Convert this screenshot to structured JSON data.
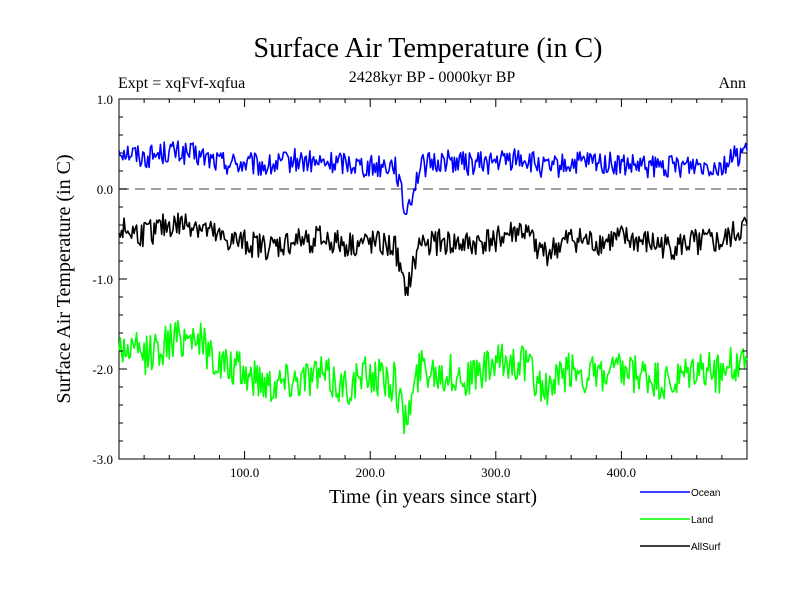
{
  "chart_data": {
    "type": "line",
    "title": "Surface Air Temperature (in C)",
    "subtitle": "2428kyr BP - 0000kyr BP",
    "experiment": "Expt = xqFvf-xqfua",
    "season": "Ann",
    "xlabel": "Time (in years since start)",
    "ylabel": "Surface Air Temperature (in C)",
    "xlim": [
      0,
      500
    ],
    "ylim": [
      -3.0,
      1.0
    ],
    "x_ticks": [
      {
        "value": 100,
        "label": "100.0"
      },
      {
        "value": 200,
        "label": "200.0"
      },
      {
        "value": 300,
        "label": "300.0"
      },
      {
        "value": 400,
        "label": "400.0"
      }
    ],
    "y_ticks": [
      {
        "value": 1.0,
        "label": "1.0"
      },
      {
        "value": 0.0,
        "label": "0.0"
      },
      {
        "value": -1.0,
        "label": "-1.0"
      },
      {
        "value": -2.0,
        "label": "-2.0"
      },
      {
        "value": -3.0,
        "label": "-3.0"
      }
    ],
    "reference_line": {
      "y": 0.0,
      "style": "dashed",
      "color": "#808080"
    },
    "series": [
      {
        "name": "Ocean",
        "color": "#0000ff",
        "x": [
          0,
          20,
          40,
          60,
          80,
          100,
          120,
          140,
          160,
          180,
          200,
          220,
          228,
          240,
          260,
          280,
          300,
          320,
          340,
          360,
          380,
          400,
          420,
          440,
          460,
          480,
          500
        ],
        "values": [
          0.45,
          0.35,
          0.42,
          0.38,
          0.3,
          0.28,
          0.25,
          0.32,
          0.28,
          0.3,
          0.25,
          0.28,
          -0.28,
          0.25,
          0.32,
          0.28,
          0.3,
          0.35,
          0.22,
          0.28,
          0.3,
          0.26,
          0.24,
          0.25,
          0.28,
          0.26,
          0.45
        ],
        "extremes": {
          "max": 0.65,
          "min": -0.28
        }
      },
      {
        "name": "Land",
        "color": "#00ff00",
        "x": [
          0,
          20,
          40,
          60,
          80,
          100,
          120,
          140,
          160,
          180,
          200,
          220,
          228,
          240,
          260,
          280,
          300,
          320,
          340,
          360,
          380,
          400,
          420,
          440,
          460,
          480,
          500
        ],
        "values": [
          -1.75,
          -1.85,
          -1.7,
          -1.6,
          -1.95,
          -2.05,
          -2.15,
          -2.1,
          -2.05,
          -2.2,
          -2.05,
          -2.15,
          -2.6,
          -1.95,
          -2.05,
          -2.1,
          -1.95,
          -1.9,
          -2.25,
          -2.0,
          -2.1,
          -2.05,
          -2.1,
          -2.2,
          -2.0,
          -2.05,
          -1.85
        ],
        "extremes": {
          "max": -1.22,
          "min": -2.82
        }
      },
      {
        "name": "AllSurf",
        "color": "#000000",
        "x": [
          0,
          20,
          40,
          60,
          80,
          100,
          120,
          140,
          160,
          180,
          200,
          220,
          228,
          240,
          260,
          280,
          300,
          320,
          340,
          360,
          380,
          400,
          420,
          440,
          460,
          480,
          500
        ],
        "values": [
          -0.45,
          -0.5,
          -0.4,
          -0.38,
          -0.55,
          -0.6,
          -0.65,
          -0.58,
          -0.55,
          -0.62,
          -0.6,
          -0.65,
          -1.18,
          -0.58,
          -0.6,
          -0.62,
          -0.55,
          -0.45,
          -0.72,
          -0.55,
          -0.6,
          -0.55,
          -0.6,
          -0.65,
          -0.58,
          -0.6,
          -0.4
        ],
        "extremes": {
          "max": -0.12,
          "min": -1.18
        }
      }
    ],
    "legend": {
      "placement": "bottom-right",
      "entries": [
        {
          "name": "Ocean",
          "color": "#0000ff"
        },
        {
          "name": "Land",
          "color": "#00ff00"
        },
        {
          "name": "AllSurf",
          "color": "#000000"
        }
      ]
    }
  }
}
